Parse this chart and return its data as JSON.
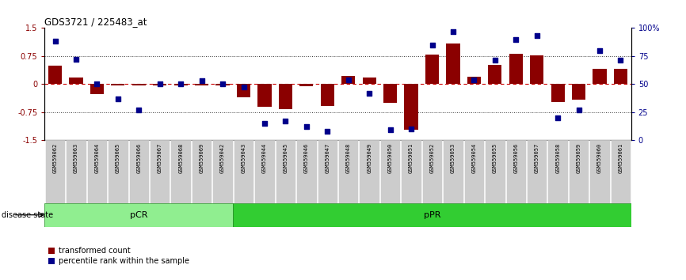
{
  "title": "GDS3721 / 225483_at",
  "samples": [
    "GSM559062",
    "GSM559063",
    "GSM559064",
    "GSM559065",
    "GSM559066",
    "GSM559067",
    "GSM559068",
    "GSM559069",
    "GSM559042",
    "GSM559043",
    "GSM559044",
    "GSM559045",
    "GSM559046",
    "GSM559047",
    "GSM559048",
    "GSM559049",
    "GSM559050",
    "GSM559051",
    "GSM559052",
    "GSM559053",
    "GSM559054",
    "GSM559055",
    "GSM559056",
    "GSM559057",
    "GSM559058",
    "GSM559059",
    "GSM559060",
    "GSM559061"
  ],
  "bar_values": [
    0.5,
    0.18,
    -0.28,
    -0.04,
    -0.04,
    -0.04,
    -0.04,
    -0.04,
    -0.04,
    -0.35,
    -0.62,
    -0.68,
    -0.05,
    -0.58,
    0.22,
    0.17,
    -0.5,
    -1.22,
    0.78,
    1.08,
    0.2,
    0.52,
    0.8,
    0.76,
    -0.48,
    -0.42,
    0.4,
    0.4
  ],
  "dot_values": [
    88,
    72,
    50,
    37,
    27,
    50,
    50,
    53,
    50,
    47,
    15,
    17,
    12,
    8,
    54,
    42,
    9,
    10,
    85,
    97,
    54,
    71,
    90,
    93,
    20,
    27,
    80,
    71
  ],
  "pCR_count": 9,
  "bar_color": "#8B0000",
  "dot_color": "#00008B",
  "pCR_color": "#90EE90",
  "pPR_color": "#32CD32",
  "ylim": [
    -1.5,
    1.5
  ],
  "yticks": [
    -1.5,
    -0.75,
    0.0,
    0.75,
    1.5
  ],
  "ytick_labels": [
    "-1.5",
    "-0.75",
    "0",
    "0.75",
    "1.5"
  ],
  "y2ticks": [
    0,
    25,
    50,
    75,
    100
  ],
  "y2tick_labels": [
    "0",
    "25",
    "50",
    "75",
    "100%"
  ],
  "hline_color": "#CC0000",
  "dotted_color": "#333333",
  "legend_red": "transformed count",
  "legend_blue": "percentile rank within the sample",
  "disease_state_label": "disease state",
  "pCR_label": "pCR",
  "pPR_label": "pPR"
}
